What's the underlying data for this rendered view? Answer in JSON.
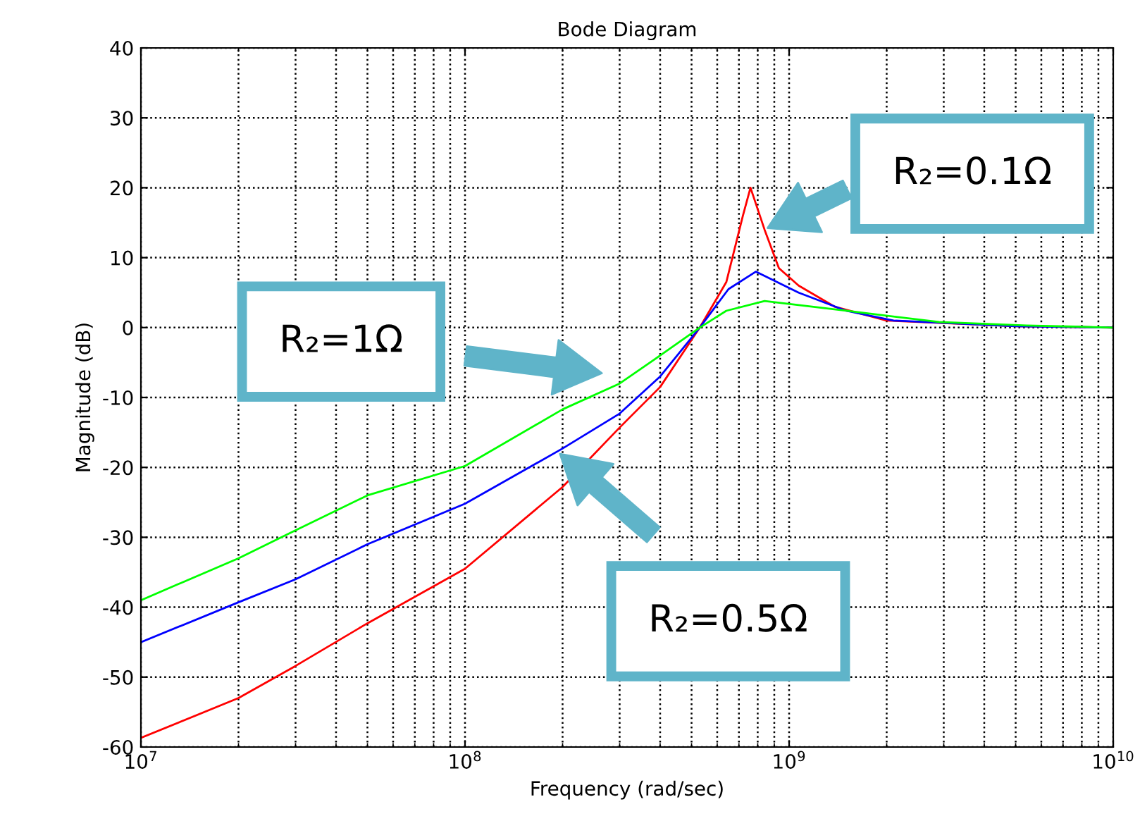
{
  "chart_data": {
    "type": "line",
    "title": "Bode Diagram",
    "xlabel": "Frequency (rad/sec)",
    "ylabel": "Magnitude (dB)",
    "log": "x",
    "grid": true,
    "line_style": "solid",
    "xlim": [
      10000000,
      10000000000
    ],
    "xticks": [
      {
        "value": 10000000,
        "label": "10$^{7}$"
      },
      {
        "value": 100000000,
        "label": "10$^{8}$"
      },
      {
        "value": 1000000000,
        "label": "10$^{9}$"
      },
      {
        "value": 10000000000,
        "label": "10$^{10}$"
      }
    ],
    "ylim": [
      -60,
      40
    ],
    "yticks": [
      -60,
      -50,
      -40,
      -30,
      -20,
      -10,
      0,
      10,
      20,
      30,
      40
    ],
    "series": [
      {
        "color": "#ff0000",
        "x": [
          10000000,
          20000000,
          30000000,
          50000000,
          100000000,
          200000000,
          300000000,
          400000000,
          530000000,
          640000000,
          720000000,
          760000000,
          840000000,
          930000000,
          1070000000,
          1380000000,
          2000000000,
          5000000000,
          10000000000
        ],
        "values": [
          -58.7,
          -53,
          -48.4,
          -42.3,
          -34.5,
          -22.8,
          -14.3,
          -8.5,
          0,
          6.5,
          16,
          20,
          14,
          8.5,
          6,
          3,
          1,
          0.2,
          0
        ]
      },
      {
        "color": "#0000ff",
        "x": [
          10000000,
          20000000,
          30000000,
          50000000,
          100000000,
          200000000,
          300000000,
          400000000,
          530000000,
          650000000,
          790000000,
          1070000000,
          1500000000,
          2100000000,
          5000000000,
          10000000000
        ],
        "values": [
          -45,
          -39.3,
          -36,
          -31,
          -25.2,
          -17.3,
          -12.3,
          -7,
          0,
          5.5,
          8,
          5,
          2.4,
          1,
          0.2,
          0
        ]
      },
      {
        "color": "#00ff00",
        "x": [
          10000000,
          20000000,
          30000000,
          50000000,
          100000000,
          200000000,
          300000000,
          400000000,
          530000000,
          640000000,
          840000000,
          1500000000,
          2900000000,
          5400000000,
          10000000000
        ],
        "values": [
          -39,
          -33,
          -29,
          -24,
          -19.8,
          -11.7,
          -8,
          -4,
          0,
          2.4,
          3.8,
          2.4,
          0.8,
          0.3,
          0
        ]
      }
    ],
    "annotations": [
      "R₂=1Ω",
      "R₂=0.5Ω",
      "R₂=0.1Ω"
    ]
  }
}
